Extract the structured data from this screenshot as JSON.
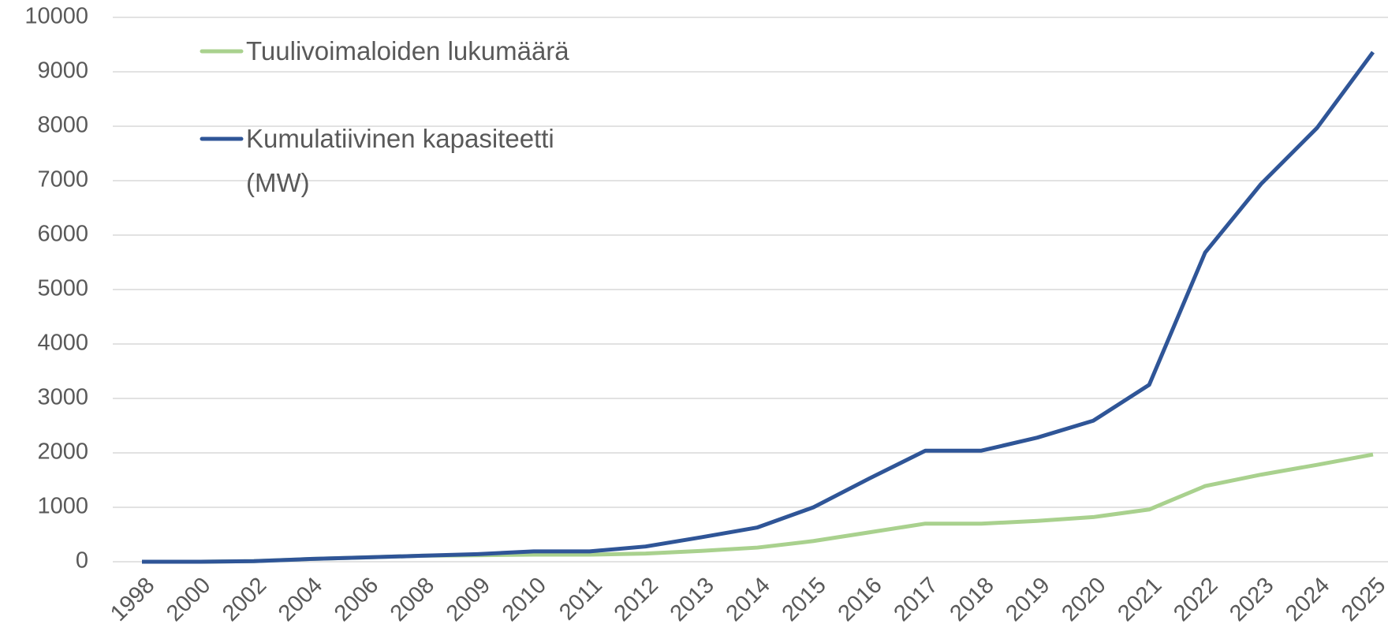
{
  "chart_data": {
    "type": "line",
    "categories": [
      "1998",
      "2000",
      "2002",
      "2004",
      "2006",
      "2008",
      "2009",
      "2010",
      "2011",
      "2012",
      "2013",
      "2014",
      "2015",
      "2016",
      "2017",
      "2018",
      "2019",
      "2020",
      "2021",
      "2022",
      "2023",
      "2024",
      "2025"
    ],
    "series": [
      {
        "name": "Tuulivoimaloiden lukumäärä",
        "color": "#a9d18e",
        "values": [
          0,
          0,
          10,
          50,
          80,
          110,
          120,
          130,
          130,
          150,
          200,
          260,
          380,
          540,
          700,
          700,
          750,
          820,
          960,
          1390,
          1600,
          1780,
          1970
        ]
      },
      {
        "name": "Kumulatiivinen kapasiteetti (MW)",
        "color": "#2f5597",
        "values": [
          0,
          0,
          10,
          50,
          80,
          110,
          140,
          190,
          190,
          280,
          450,
          630,
          1000,
          1530,
          2040,
          2040,
          2280,
          2590,
          3250,
          5680,
          6940,
          7970,
          9360
        ]
      }
    ],
    "ylim": [
      0,
      10000
    ],
    "yticks": [
      0,
      1000,
      2000,
      3000,
      4000,
      5000,
      6000,
      7000,
      8000,
      9000,
      10000
    ],
    "grid": true,
    "legend": "upper left"
  }
}
